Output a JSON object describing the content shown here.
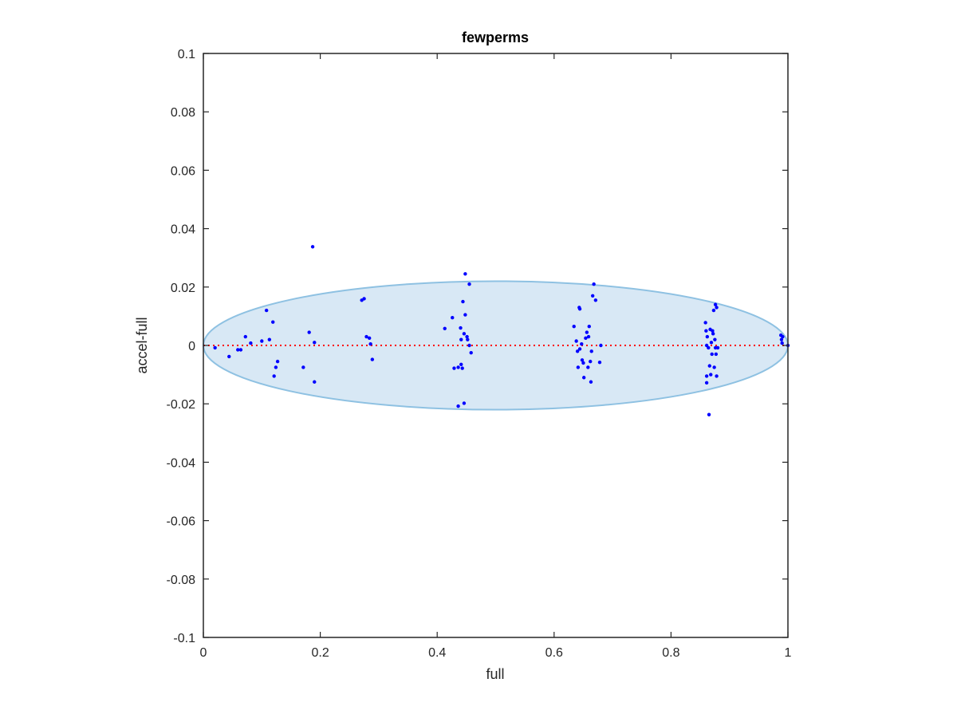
{
  "chart_data": {
    "type": "scatter",
    "title": "fewperms",
    "xlabel": "full",
    "ylabel": "accel-full",
    "xlim": [
      0,
      1
    ],
    "ylim": [
      -0.1,
      0.1
    ],
    "x_ticks": [
      {
        "value": 0,
        "label": "0"
      },
      {
        "value": 0.2,
        "label": "0.2"
      },
      {
        "value": 0.4,
        "label": "0.4"
      },
      {
        "value": 0.6,
        "label": "0.6"
      },
      {
        "value": 0.8,
        "label": "0.8"
      },
      {
        "value": 1,
        "label": "1"
      }
    ],
    "y_ticks": [
      {
        "value": 0.1,
        "label": "0.1"
      },
      {
        "value": 0.08,
        "label": "0.08"
      },
      {
        "value": 0.06,
        "label": "0.06"
      },
      {
        "value": 0.04,
        "label": "0.04"
      },
      {
        "value": 0.02,
        "label": "0.02"
      },
      {
        "value": 0,
        "label": "0"
      },
      {
        "value": -0.02,
        "label": "-0.02"
      },
      {
        "value": -0.04,
        "label": "-0.04"
      },
      {
        "value": -0.06,
        "label": "-0.06"
      },
      {
        "value": -0.08,
        "label": "-0.08"
      },
      {
        "value": -0.1,
        "label": "-0.1"
      }
    ],
    "grid": false,
    "legend": "none",
    "reference_line": {
      "y": 0,
      "style": "dotted",
      "color": "#ff0000"
    },
    "ellipse": {
      "center": [
        0.5,
        0
      ],
      "x_half_width": 0.5,
      "y_half_height": 0.022,
      "fill": "#d8e8f5",
      "stroke": "#8ec1e2"
    },
    "point_color": "#0000ff",
    "points": [
      [
        0.02,
        -0.0008
      ],
      [
        0.044,
        -0.0038
      ],
      [
        0.059,
        -0.0015
      ],
      [
        0.064,
        -0.0015
      ],
      [
        0.072,
        0.003
      ],
      [
        0.081,
        0.0008
      ],
      [
        0.1,
        0.0015
      ],
      [
        0.108,
        0.012
      ],
      [
        0.113,
        0.002
      ],
      [
        0.119,
        0.008
      ],
      [
        0.121,
        -0.0105
      ],
      [
        0.124,
        -0.0075
      ],
      [
        0.127,
        -0.0055
      ],
      [
        0.171,
        -0.0075
      ],
      [
        0.181,
        0.0045
      ],
      [
        0.187,
        0.0338
      ],
      [
        0.19,
        0.001
      ],
      [
        0.19,
        -0.0125
      ],
      [
        0.271,
        0.0155
      ],
      [
        0.275,
        0.016
      ],
      [
        0.279,
        0.003
      ],
      [
        0.284,
        0.0025
      ],
      [
        0.286,
        0.0005
      ],
      [
        0.289,
        -0.0048
      ],
      [
        0.413,
        0.0058
      ],
      [
        0.426,
        0.0095
      ],
      [
        0.429,
        -0.0078
      ],
      [
        0.436,
        -0.0075
      ],
      [
        0.436,
        -0.0208
      ],
      [
        0.44,
        0.006
      ],
      [
        0.441,
        0.002
      ],
      [
        0.441,
        -0.0065
      ],
      [
        0.443,
        -0.0078
      ],
      [
        0.444,
        0.015
      ],
      [
        0.446,
        0.004
      ],
      [
        0.446,
        -0.0198
      ],
      [
        0.448,
        0.0245
      ],
      [
        0.448,
        0.0105
      ],
      [
        0.451,
        0.003
      ],
      [
        0.452,
        0.002
      ],
      [
        0.455,
        0.021
      ],
      [
        0.455,
        0.0
      ],
      [
        0.458,
        -0.0025
      ],
      [
        0.634,
        0.0065
      ],
      [
        0.638,
        0.0015
      ],
      [
        0.64,
        -0.002
      ],
      [
        0.641,
        -0.0075
      ],
      [
        0.643,
        0.013
      ],
      [
        0.644,
        0.0125
      ],
      [
        0.644,
        -0.0012
      ],
      [
        0.647,
        0.0005
      ],
      [
        0.648,
        -0.005
      ],
      [
        0.65,
        -0.006
      ],
      [
        0.651,
        -0.011
      ],
      [
        0.654,
        0.0025
      ],
      [
        0.656,
        0.0045
      ],
      [
        0.658,
        -0.0075
      ],
      [
        0.659,
        0.003
      ],
      [
        0.66,
        0.0065
      ],
      [
        0.662,
        -0.0055
      ],
      [
        0.663,
        -0.0125
      ],
      [
        0.664,
        -0.002
      ],
      [
        0.666,
        0.017
      ],
      [
        0.668,
        0.021
      ],
      [
        0.671,
        0.0155
      ],
      [
        0.678,
        -0.0058
      ],
      [
        0.68,
        0.0
      ],
      [
        0.859,
        0.0078
      ],
      [
        0.86,
        0.005
      ],
      [
        0.861,
        0.0
      ],
      [
        0.861,
        -0.0105
      ],
      [
        0.861,
        -0.0128
      ],
      [
        0.862,
        0.003
      ],
      [
        0.864,
        -0.0008
      ],
      [
        0.865,
        -0.0237
      ],
      [
        0.866,
        -0.007
      ],
      [
        0.867,
        0.0055
      ],
      [
        0.868,
        -0.01
      ],
      [
        0.869,
        0.001
      ],
      [
        0.87,
        -0.003
      ],
      [
        0.871,
        0.005
      ],
      [
        0.872,
        0.004
      ],
      [
        0.873,
        0.012
      ],
      [
        0.874,
        -0.0075
      ],
      [
        0.875,
        0.002
      ],
      [
        0.876,
        0.014
      ],
      [
        0.876,
        -0.0008
      ],
      [
        0.877,
        -0.003
      ],
      [
        0.878,
        0.013
      ],
      [
        0.878,
        -0.0105
      ],
      [
        0.88,
        -0.0008
      ],
      [
        0.988,
        0.0035
      ],
      [
        0.989,
        0.002
      ],
      [
        0.99,
        0.0008
      ],
      [
        0.991,
        0.003
      ],
      [
        1.0,
        0.0
      ]
    ]
  }
}
